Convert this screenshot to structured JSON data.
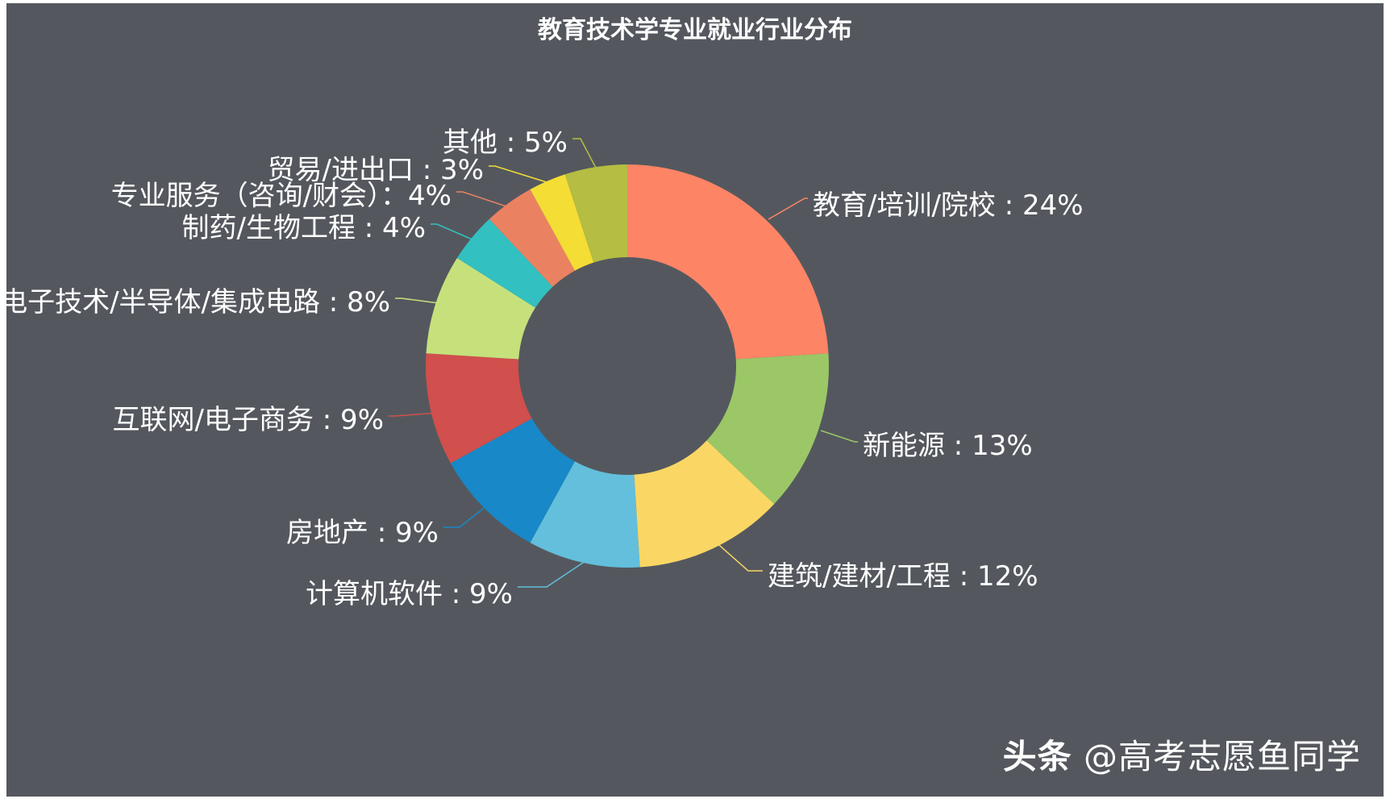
{
  "chart_data": {
    "type": "pie",
    "variant": "donut",
    "title": "教育技术学专业就业行业分布",
    "slices": [
      {
        "label": "教育/培训/院校",
        "value": 24,
        "display": "教育/培训/院校 : 24%",
        "color": "#fe8466"
      },
      {
        "label": "新能源",
        "value": 13,
        "display": "新能源 : 13%",
        "color": "#9bc766"
      },
      {
        "label": "建筑/建材/工程",
        "value": 12,
        "display": "建筑/建材/工程 : 12%",
        "color": "#fad764"
      },
      {
        "label": "计算机软件",
        "value": 9,
        "display": "计算机软件 : 9%",
        "color": "#63bfdc"
      },
      {
        "label": "房地产",
        "value": 9,
        "display": "房地产 : 9%",
        "color": "#1888c8"
      },
      {
        "label": "互联网/电子商务",
        "value": 9,
        "display": "互联网/电子商务 : 9%",
        "color": "#d14f4c"
      },
      {
        "label": "电子技术/半导体/集成电路",
        "value": 8,
        "display": "电子技术/半导体/集成电路 : 8%",
        "color": "#c6e17b"
      },
      {
        "label": "制药/生物工程",
        "value": 4,
        "display": "制药/生物工程 : 4%",
        "color": "#33c0c1"
      },
      {
        "label": "专业服务（咨询/财会）",
        "value": 4,
        "display": "专业服务（咨询/财会）：4%",
        "color": "#ea8262"
      },
      {
        "label": "贸易/进出口",
        "value": 3,
        "display": "贸易/进出口 : 3%",
        "color": "#f4dd34"
      },
      {
        "label": "其他",
        "value": 5,
        "display": "其他 : 5%",
        "color": "#b5bd42"
      }
    ]
  },
  "watermark": {
    "brand": "头条",
    "handle": "@高考志愿鱼同学"
  }
}
